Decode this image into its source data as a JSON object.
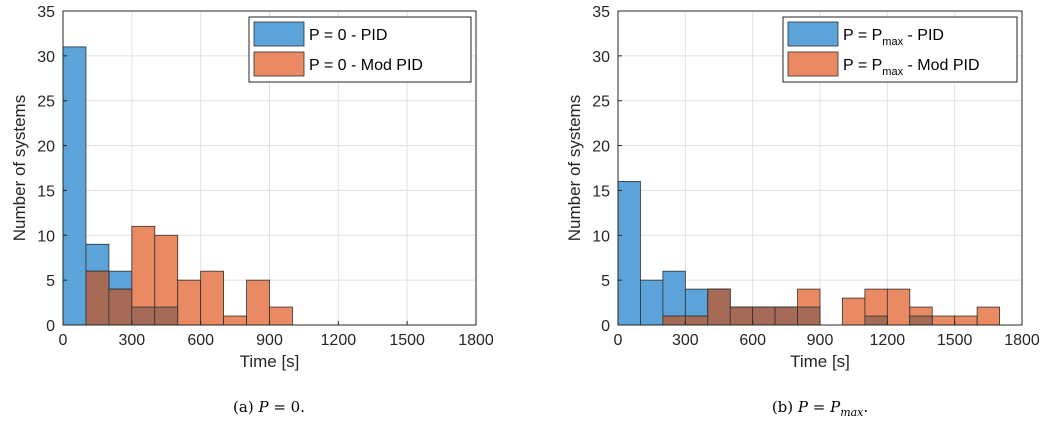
{
  "colors": {
    "series1": "#5ba3d9",
    "series2": "#ea8a63",
    "overlap": "#a56b57",
    "edge": "#303030",
    "grid": "#e1e1e1",
    "axis": "#262626"
  },
  "chart_data": [
    {
      "type": "bar",
      "histogram": true,
      "bin_width": 100,
      "xlim": [
        0,
        1800
      ],
      "ylim": [
        0,
        35
      ],
      "xticks": [
        "0",
        "300",
        "600",
        "900",
        "1200",
        "1500",
        "1800"
      ],
      "yticks": [
        "0",
        "5",
        "10",
        "15",
        "20",
        "25",
        "30",
        "35"
      ],
      "xlabel": "Time [s]",
      "ylabel": "Number of systems",
      "grid": true,
      "legend_position": "top-right",
      "series": [
        {
          "legend_main": "P = 0 - PID",
          "legend_sub": "",
          "legend_tail": "",
          "bins": [
            0,
            100,
            200,
            300,
            400
          ],
          "values": [
            31,
            9,
            6,
            2,
            2
          ]
        },
        {
          "legend_main": "P = 0 - Mod PID",
          "legend_sub": "",
          "legend_tail": "",
          "bins": [
            100,
            200,
            300,
            400,
            500,
            600,
            700,
            800,
            900
          ],
          "values": [
            6,
            4,
            11,
            10,
            5,
            6,
            1,
            5,
            2
          ]
        }
      ],
      "caption": {
        "prefix": "(a) ",
        "math": "P",
        "sub": "",
        "suffix": " = 0."
      }
    },
    {
      "type": "bar",
      "histogram": true,
      "bin_width": 100,
      "xlim": [
        0,
        1800
      ],
      "ylim": [
        0,
        35
      ],
      "xticks": [
        "0",
        "300",
        "600",
        "900",
        "1200",
        "1500",
        "1800"
      ],
      "yticks": [
        "0",
        "5",
        "10",
        "15",
        "20",
        "25",
        "30",
        "35"
      ],
      "xlabel": "Time [s]",
      "ylabel": "Number of systems",
      "grid": true,
      "legend_position": "top-right",
      "series": [
        {
          "legend_main": "P = P",
          "legend_sub": "max",
          "legend_tail": " - PID",
          "bins": [
            0,
            100,
            200,
            300,
            400,
            500,
            600,
            700,
            800,
            1100,
            1300
          ],
          "values": [
            16,
            5,
            6,
            4,
            4,
            2,
            2,
            2,
            2,
            1,
            1
          ]
        },
        {
          "legend_main": "P = P",
          "legend_sub": "max",
          "legend_tail": " - Mod PID",
          "bins": [
            200,
            300,
            400,
            500,
            600,
            700,
            800,
            1000,
            1100,
            1200,
            1300,
            1400,
            1500,
            1600
          ],
          "values": [
            1,
            1,
            4,
            2,
            2,
            2,
            4,
            3,
            4,
            4,
            2,
            1,
            1,
            2
          ]
        }
      ],
      "caption": {
        "prefix": "(b) ",
        "math": "P",
        "sub": "max",
        "suffix": "."
      }
    }
  ]
}
